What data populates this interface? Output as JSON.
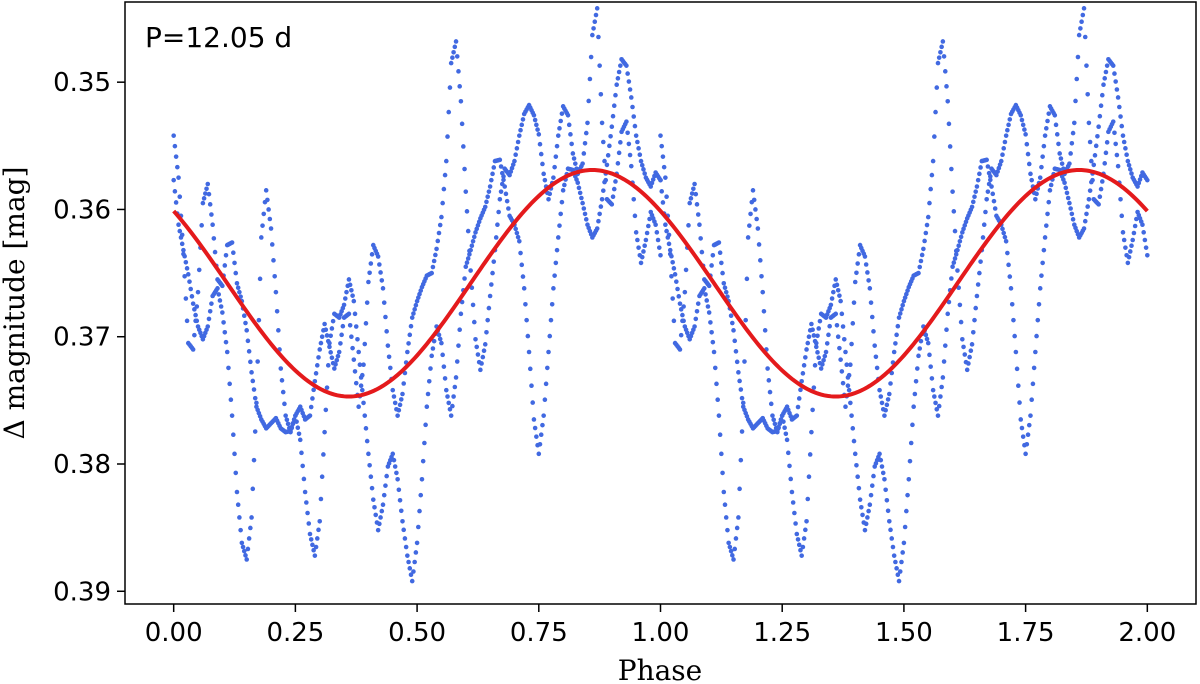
{
  "chart_data": {
    "type": "scatter",
    "annotation": "P=12.05 d",
    "xlabel": "Phase",
    "ylabel": "Δ magnitude [mag]",
    "xlim": [
      -0.1,
      2.1
    ],
    "ylim": [
      0.391,
      0.3437
    ],
    "y_inverted": true,
    "xticks": [
      0.0,
      0.25,
      0.5,
      0.75,
      1.0,
      1.25,
      1.5,
      1.75,
      2.0
    ],
    "xtick_labels": [
      "0.00",
      "0.25",
      "0.50",
      "0.75",
      "1.00",
      "1.25",
      "1.50",
      "1.75",
      "2.00"
    ],
    "yticks": [
      0.35,
      0.36,
      0.37,
      0.38,
      0.39
    ],
    "ytick_labels": [
      "0.35",
      "0.36",
      "0.37",
      "0.38",
      "0.39"
    ],
    "grid": false,
    "series": [
      {
        "kind": "points",
        "color": "#4169e1",
        "x": [
          0.0,
          0.01,
          0.02,
          0.03,
          0.04,
          0.05,
          0.06,
          0.07,
          0.08,
          0.09,
          0.1,
          0.11,
          0.12,
          0.13,
          0.14,
          0.15,
          0.16,
          0.17,
          0.18,
          0.19,
          0.2,
          0.21,
          0.22,
          0.23,
          0.24,
          0.25,
          0.26,
          0.27,
          0.28,
          0.29,
          0.3,
          0.31,
          0.32,
          0.33,
          0.34,
          0.35,
          0.36,
          0.37,
          0.38,
          0.39,
          0.4,
          0.41,
          0.42,
          0.43,
          0.44,
          0.45,
          0.46,
          0.47,
          0.48,
          0.49,
          0.5,
          0.51,
          0.52,
          0.53,
          0.54,
          0.55,
          0.56,
          0.57,
          0.58,
          0.59,
          0.6,
          0.61,
          0.62,
          0.63,
          0.64,
          0.65,
          0.66,
          0.67,
          0.68,
          0.69,
          0.7,
          0.71,
          0.72,
          0.73,
          0.74,
          0.75,
          0.76,
          0.77,
          0.78,
          0.79,
          0.8,
          0.81,
          0.82,
          0.83,
          0.84,
          0.85,
          0.86,
          0.87,
          0.88,
          0.89,
          0.9,
          0.91,
          0.92,
          0.93,
          0.94,
          0.95,
          0.96,
          0.97,
          0.98,
          0.99,
          1.0
        ],
        "y_pass1": [
          0.3542,
          0.3575,
          0.3635,
          0.3705,
          0.371,
          0.3665,
          0.3595,
          0.358,
          0.3612,
          0.3655,
          0.366,
          0.3628,
          0.3626,
          0.3658,
          0.3672,
          0.3695,
          0.3728,
          0.3755,
          0.3765,
          0.3772,
          0.3768,
          0.3764,
          0.3772,
          0.3775,
          0.3774,
          0.3762,
          0.3755,
          0.3765,
          0.3762,
          0.3735,
          0.371,
          0.369,
          0.3708,
          0.3725,
          0.3712,
          0.3685,
          0.3682,
          0.3718,
          0.3755,
          0.3722,
          0.3657,
          0.3628,
          0.3637,
          0.3662,
          0.3707,
          0.3742,
          0.3762,
          0.3745,
          0.3712,
          0.3685,
          0.3672,
          0.3661,
          0.3652,
          0.365,
          0.3631,
          0.3606,
          0.3562,
          0.3485,
          0.3468,
          0.3515,
          0.3586,
          0.3648,
          0.3702,
          0.3726,
          0.3706,
          0.3668,
          0.3632,
          0.3592,
          0.3568,
          0.3573,
          0.3562,
          0.3542,
          0.3525,
          0.3518,
          0.3526,
          0.3541,
          0.3572,
          0.3592,
          0.3575,
          0.3542,
          0.3519,
          0.3526,
          0.3556,
          0.3572,
          0.3564,
          0.3532,
          0.3463,
          0.3442,
          0.3532,
          0.3592,
          0.3596,
          0.3572,
          0.3539,
          0.3531,
          0.3566,
          0.3618,
          0.3642,
          0.3624,
          0.3602,
          0.3612,
          0.3636
        ],
        "y_pass2": [
          0.3577,
          0.3612,
          0.3632,
          0.3651,
          0.3674,
          0.3692,
          0.3702,
          0.3692,
          0.3668,
          0.3662,
          0.3681,
          0.3712,
          0.3762,
          0.3822,
          0.3862,
          0.3875,
          0.3842,
          0.3752,
          0.3622,
          0.3585,
          0.3615,
          0.3665,
          0.3725,
          0.3762,
          0.3775,
          0.3762,
          0.3781,
          0.3822,
          0.3855,
          0.3872,
          0.3845,
          0.3775,
          0.3705,
          0.3682,
          0.3685,
          0.3675,
          0.3655,
          0.3672,
          0.3712,
          0.3752,
          0.3792,
          0.3828,
          0.3852,
          0.3832,
          0.3802,
          0.3792,
          0.3812,
          0.3845,
          0.3872,
          0.3892,
          0.3862,
          0.3812,
          0.3755,
          0.3715,
          0.3692,
          0.3705,
          0.3742,
          0.3762,
          0.3732,
          0.3682,
          0.3645,
          0.3632,
          0.3618,
          0.3607,
          0.3598,
          0.3582,
          0.3562,
          0.3561,
          0.3582,
          0.3605,
          0.3612,
          0.3625,
          0.3662,
          0.3712,
          0.3765,
          0.3792,
          0.3762,
          0.3712,
          0.3662,
          0.3622,
          0.3585,
          0.3568,
          0.3569,
          0.3579,
          0.3595,
          0.3612,
          0.3622,
          0.3615,
          0.3592,
          0.3565,
          0.3535,
          0.3502,
          0.3482,
          0.3487,
          0.3512,
          0.3542,
          0.3562,
          0.3575,
          0.3582,
          0.3571,
          0.3577
        ]
      },
      {
        "kind": "line",
        "color": "#e41a1c",
        "model": "sinusoid",
        "mean": 0.3658,
        "amplitude": 0.0089,
        "phase_of_minimum": 0.36
      }
    ]
  }
}
